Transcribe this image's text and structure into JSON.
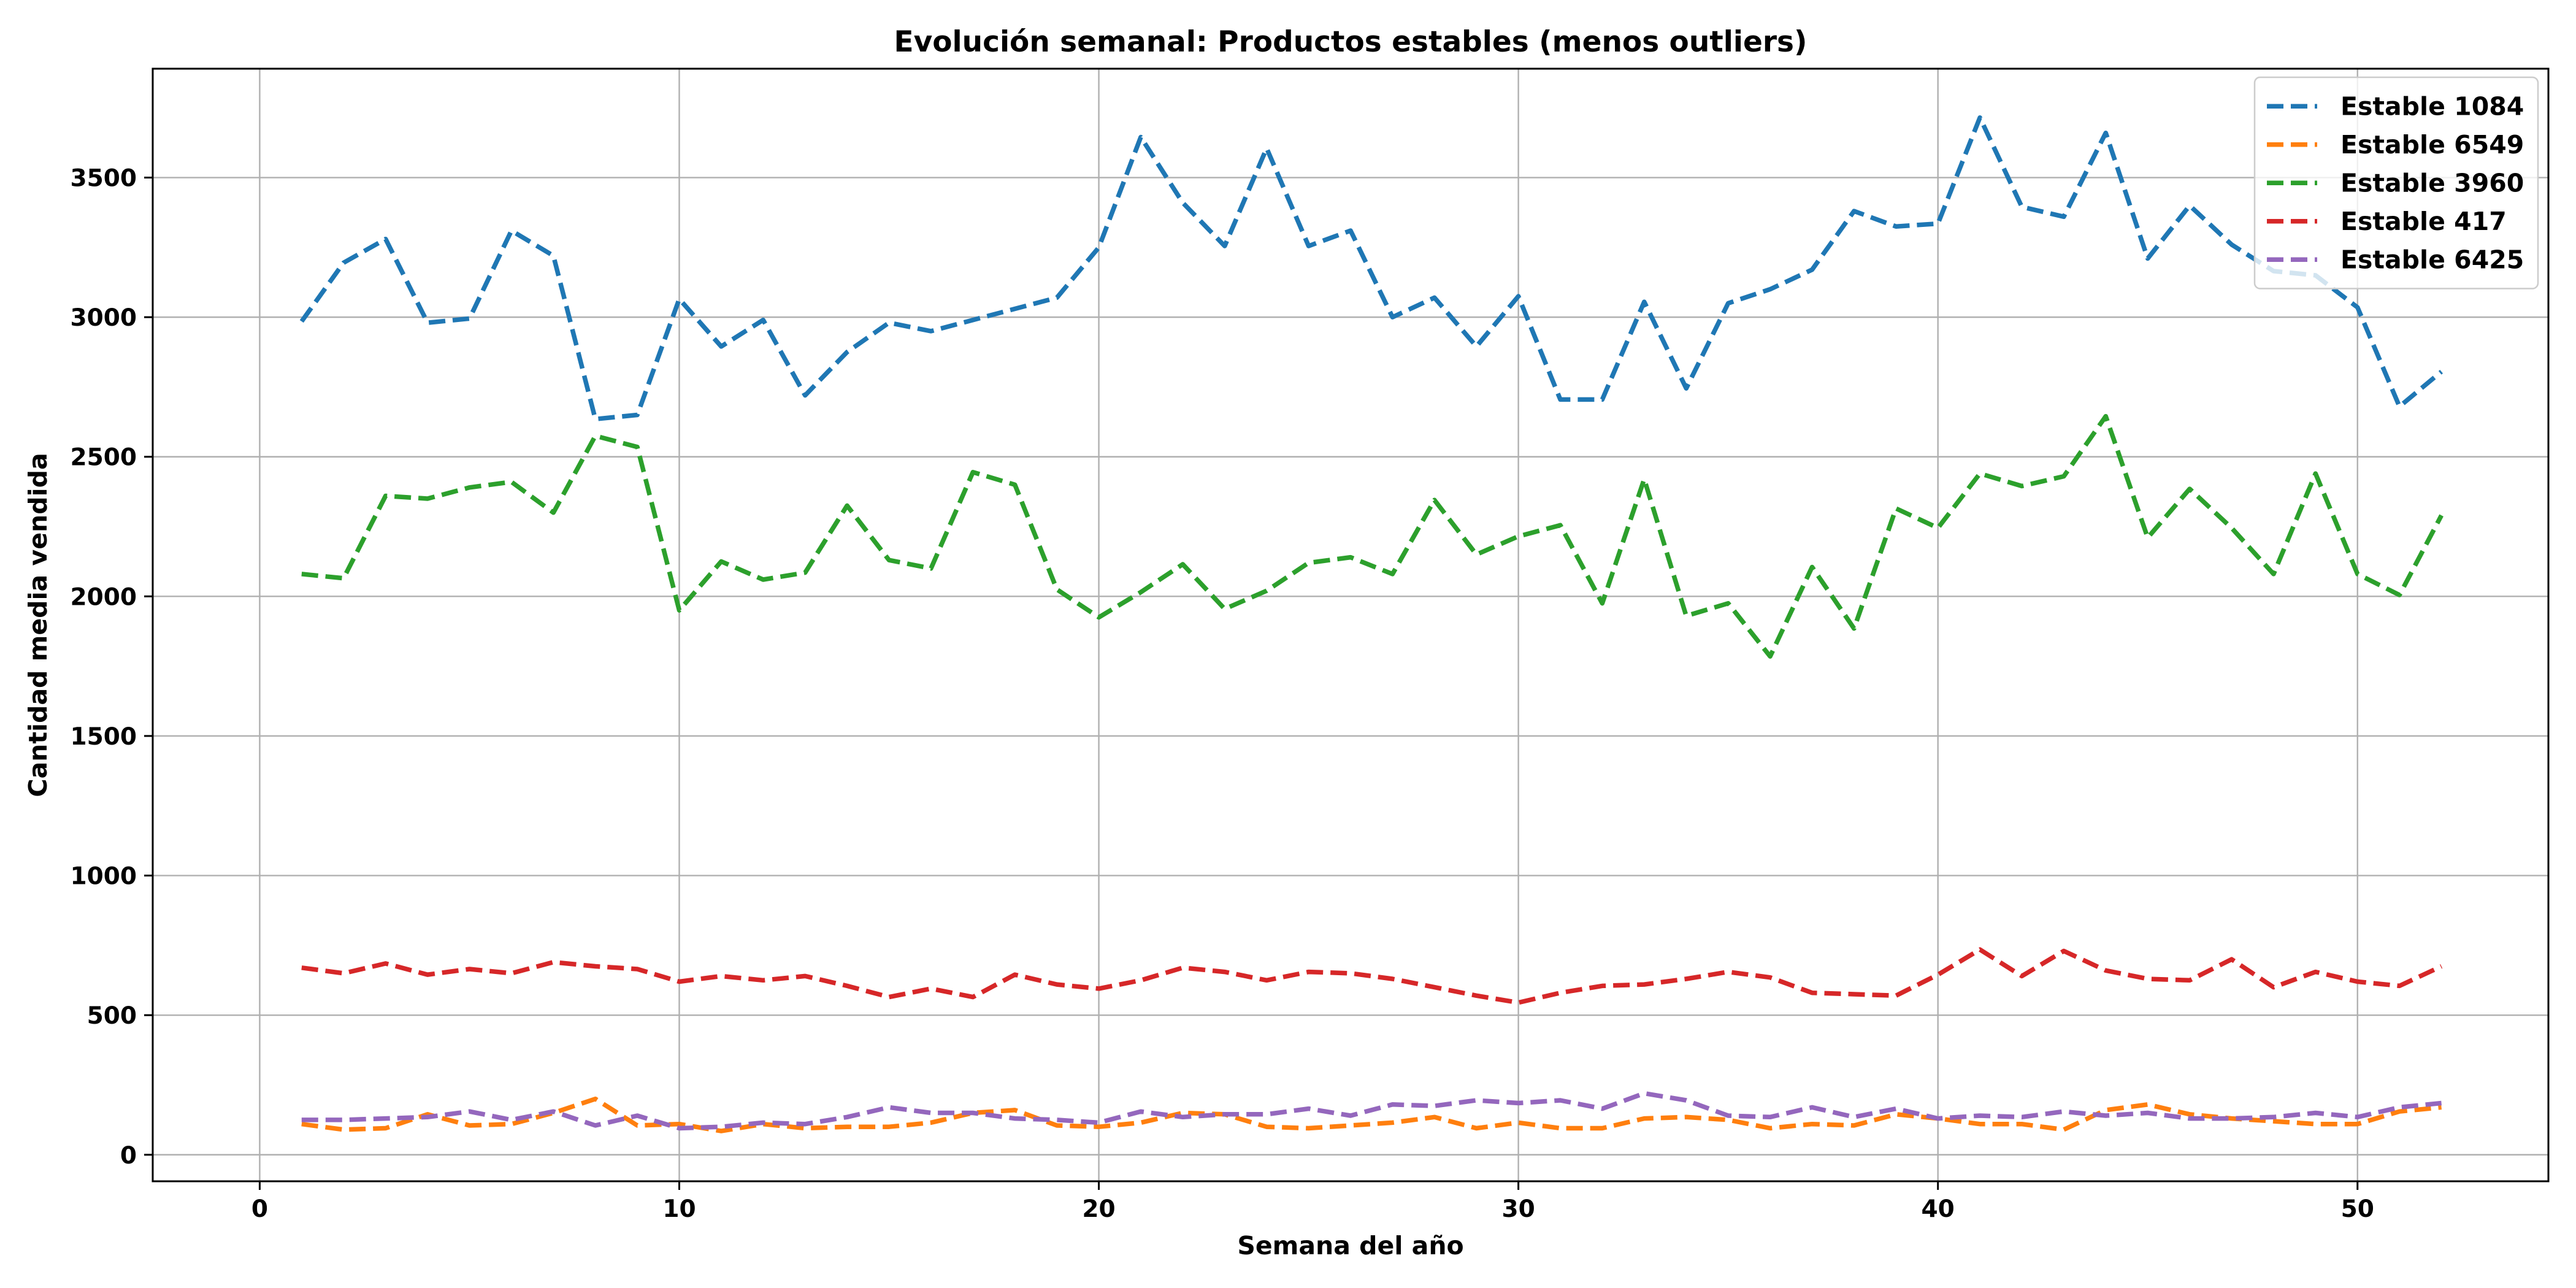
{
  "chart_data": {
    "type": "line",
    "title": "Evolución semanal: Productos estables (menos outliers)",
    "xlabel": "Semana del año",
    "ylabel": "Cantidad media vendida",
    "xlim": [
      -2.55,
      54.55
    ],
    "ylim": [
      -95,
      3890
    ],
    "xticks": [
      0,
      10,
      20,
      30,
      40,
      50
    ],
    "yticks": [
      0,
      500,
      1000,
      1500,
      2000,
      2500,
      3000,
      3500
    ],
    "grid": true,
    "legend_position": "top-right",
    "x": [
      1,
      2,
      3,
      4,
      5,
      6,
      7,
      8,
      9,
      10,
      11,
      12,
      13,
      14,
      15,
      16,
      17,
      18,
      19,
      20,
      21,
      22,
      23,
      24,
      25,
      26,
      27,
      28,
      29,
      30,
      31,
      32,
      33,
      34,
      35,
      36,
      37,
      38,
      39,
      40,
      41,
      42,
      43,
      44,
      45,
      46,
      47,
      48,
      49,
      50,
      51,
      52
    ],
    "series": [
      {
        "name": "Estable 1084",
        "color": "#1f77b4",
        "values": [
          2985,
          3195,
          3280,
          2980,
          2995,
          3310,
          3220,
          2635,
          2650,
          3065,
          2895,
          2990,
          2720,
          2875,
          2980,
          2950,
          2990,
          3030,
          3070,
          3250,
          3645,
          3410,
          3255,
          3605,
          3255,
          3310,
          3000,
          3070,
          2895,
          3075,
          2705,
          2705,
          3055,
          2745,
          3050,
          3100,
          3170,
          3380,
          3325,
          3335,
          3715,
          3395,
          3360,
          3660,
          3210,
          3400,
          3260,
          3165,
          3150,
          3035,
          2680,
          2805
        ]
      },
      {
        "name": "Estable 6549",
        "color": "#ff7f0e",
        "values": [
          110,
          90,
          95,
          145,
          105,
          110,
          150,
          200,
          105,
          110,
          85,
          110,
          95,
          100,
          100,
          115,
          150,
          160,
          105,
          100,
          115,
          150,
          145,
          100,
          95,
          105,
          115,
          135,
          95,
          115,
          95,
          95,
          130,
          135,
          125,
          95,
          110,
          105,
          145,
          130,
          110,
          110,
          90,
          160,
          180,
          145,
          130,
          120,
          110,
          110,
          155,
          170
        ]
      },
      {
        "name": "Estable 3960",
        "color": "#2ca02c",
        "values": [
          2080,
          2065,
          2360,
          2350,
          2390,
          2410,
          2300,
          2575,
          2535,
          1950,
          2125,
          2060,
          2085,
          2325,
          2130,
          2100,
          2445,
          2400,
          2025,
          1925,
          2015,
          2115,
          1955,
          2020,
          2120,
          2140,
          2080,
          2345,
          2150,
          2215,
          2255,
          1975,
          2420,
          1930,
          1975,
          1785,
          2105,
          1885,
          2315,
          2245,
          2440,
          2395,
          2430,
          2645,
          2210,
          2385,
          2245,
          2080,
          2440,
          2080,
          2005,
          2290
        ]
      },
      {
        "name": "Estable 417",
        "color": "#d62728",
        "values": [
          670,
          650,
          685,
          645,
          665,
          650,
          690,
          675,
          665,
          620,
          640,
          625,
          640,
          605,
          565,
          595,
          565,
          645,
          610,
          595,
          625,
          670,
          655,
          625,
          655,
          650,
          630,
          600,
          570,
          545,
          580,
          605,
          610,
          630,
          655,
          635,
          580,
          575,
          570,
          645,
          735,
          640,
          730,
          660,
          630,
          625,
          700,
          600,
          655,
          620,
          605,
          675
        ]
      },
      {
        "name": "Estable 6425",
        "color": "#9467bd",
        "values": [
          125,
          125,
          130,
          135,
          155,
          125,
          155,
          105,
          140,
          95,
          100,
          115,
          110,
          135,
          170,
          150,
          150,
          130,
          125,
          115,
          155,
          135,
          145,
          145,
          165,
          140,
          180,
          175,
          195,
          185,
          195,
          165,
          220,
          195,
          140,
          135,
          170,
          135,
          165,
          130,
          140,
          135,
          155,
          140,
          150,
          130,
          130,
          135,
          150,
          135,
          170,
          185
        ]
      }
    ]
  }
}
